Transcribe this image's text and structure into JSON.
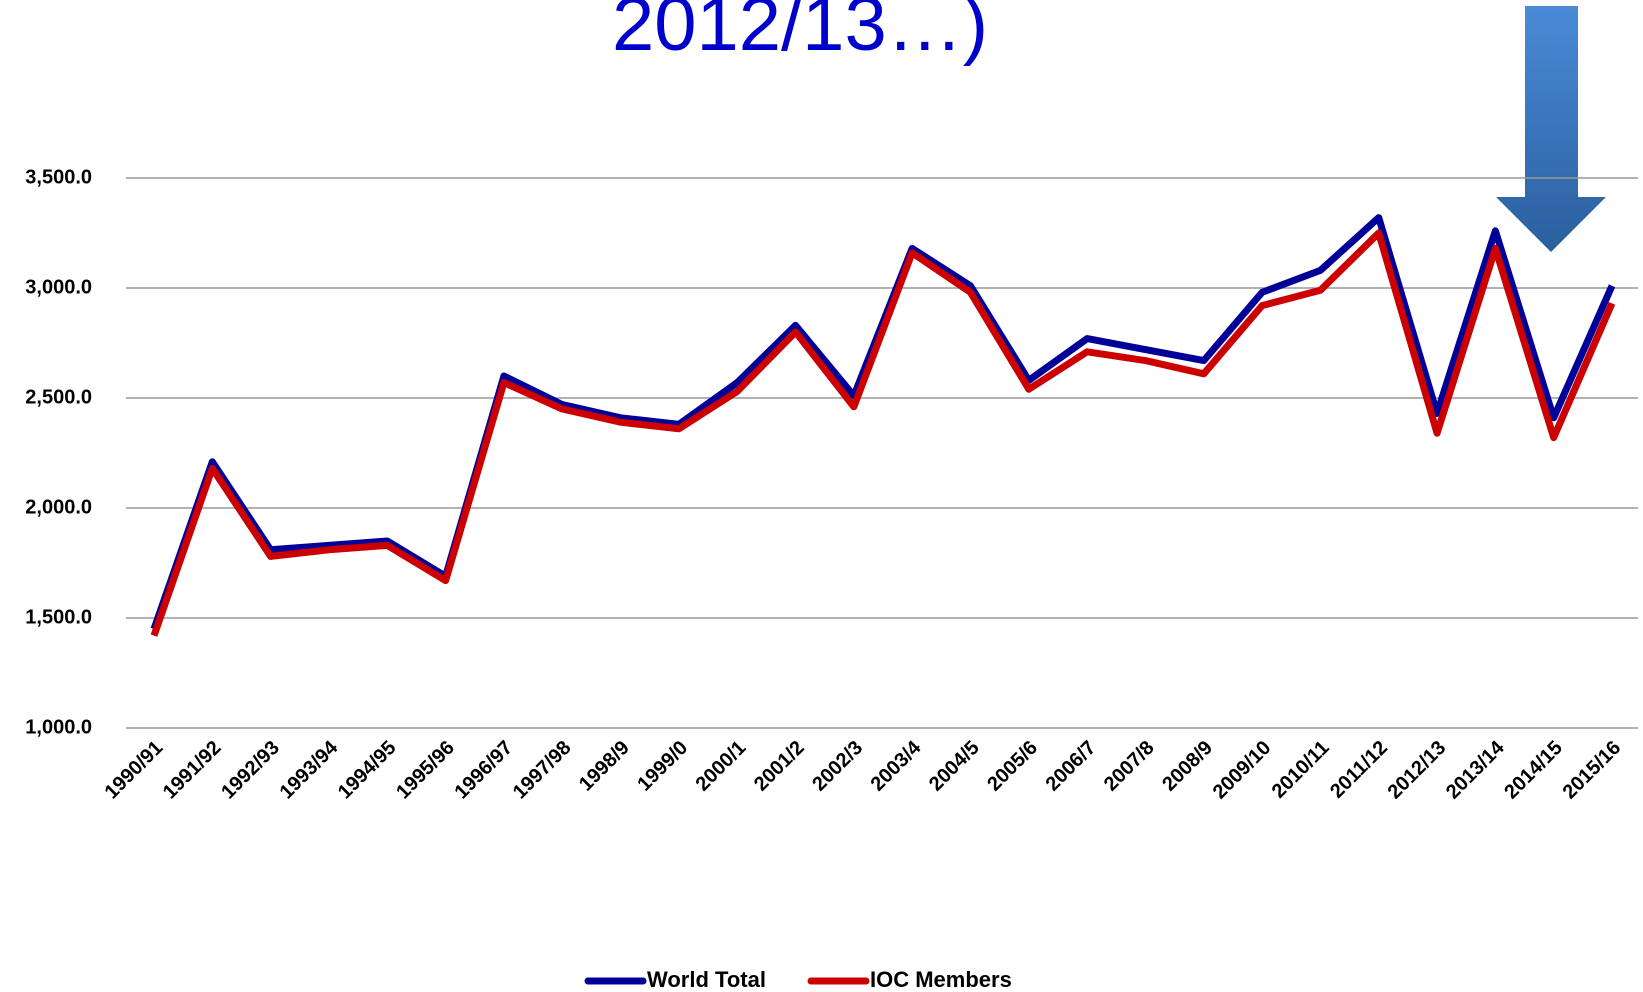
{
  "chart_data": {
    "type": "line",
    "title": "2012/13…)",
    "categories": [
      "1990/91",
      "1991/92",
      "1992/93",
      "1993/94",
      "1994/95",
      "1995/96",
      "1996/97",
      "1997/98",
      "1998/9",
      "1999/0",
      "2000/1",
      "2001/2",
      "2002/3",
      "2003/4",
      "2004/5",
      "2005/6",
      "2006/7",
      "2007/8",
      "2008/9",
      "2009/10",
      "2010/11",
      "2011/12",
      "2012/13",
      "2013/14",
      "2014/15",
      "2015/16"
    ],
    "series": [
      {
        "name": "World Total",
        "color": "#000099",
        "values": [
          1450,
          2210,
          1810,
          1830,
          1850,
          1690,
          2600,
          2470,
          2410,
          2380,
          2570,
          2830,
          2510,
          3180,
          3010,
          2580,
          2770,
          2720,
          2670,
          2980,
          3080,
          3320,
          2430,
          3260,
          2410,
          3010
        ]
      },
      {
        "name": "IOC Members",
        "color": "#cc0000",
        "values": [
          1420,
          2180,
          1780,
          1810,
          1830,
          1670,
          2570,
          2450,
          2390,
          2360,
          2530,
          2800,
          2460,
          3160,
          2980,
          2540,
          2710,
          2670,
          2610,
          2920,
          2990,
          3250,
          2340,
          3180,
          2320,
          2930
        ]
      }
    ],
    "ylim": [
      1000,
      3500
    ],
    "yticks": [
      {
        "value": 1000,
        "label": "1,000.0"
      },
      {
        "value": 1500,
        "label": "1,500.0"
      },
      {
        "value": 2000,
        "label": "2,000.0"
      },
      {
        "value": 2500,
        "label": "2,500.0"
      },
      {
        "value": 3000,
        "label": "3,000.0"
      },
      {
        "value": 3500,
        "label": "3,500.0"
      }
    ],
    "grid": true,
    "legend": "bottom"
  }
}
